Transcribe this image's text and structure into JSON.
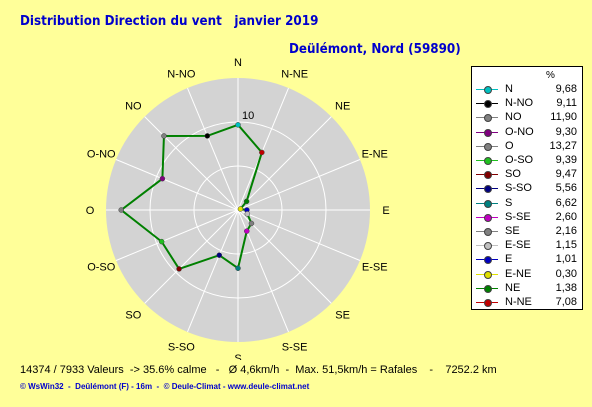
{
  "title": "Distribution Direction du vent   janvier 2019",
  "subtitle": "Deülémont, Nord (59890)",
  "legend_header": "%",
  "chart_data": {
    "type": "radar",
    "directions": [
      "N",
      "N-NE",
      "NE",
      "E-NE",
      "E",
      "E-SE",
      "SE",
      "S-SE",
      "S",
      "S-SO",
      "SO",
      "O-SO",
      "O",
      "O-NO",
      "NO",
      "N-NO"
    ],
    "values": [
      9.68,
      7.08,
      1.38,
      0.3,
      1.01,
      1.15,
      2.16,
      2.6,
      6.62,
      5.56,
      9.47,
      9.39,
      13.27,
      9.3,
      11.9,
      9.11
    ],
    "rmax": 15,
    "ring_label": "10",
    "line_color": "#008000",
    "legend": [
      {
        "label": "N",
        "value": "9,68",
        "color": "#00C0C0"
      },
      {
        "label": "N-NO",
        "value": "9,11",
        "color": "#000000"
      },
      {
        "label": "NO",
        "value": "11,90",
        "color": "#808080"
      },
      {
        "label": "O-NO",
        "value": "9,30",
        "color": "#800080"
      },
      {
        "label": "O",
        "value": "13,27",
        "color": "#808080"
      },
      {
        "label": "O-SO",
        "value": "9,39",
        "color": "#20C020"
      },
      {
        "label": "SO",
        "value": "9,47",
        "color": "#800000"
      },
      {
        "label": "S-SO",
        "value": "5,56",
        "color": "#000080"
      },
      {
        "label": "S",
        "value": "6,62",
        "color": "#008080"
      },
      {
        "label": "S-SE",
        "value": "2,60",
        "color": "#C000C0"
      },
      {
        "label": "SE",
        "value": "2,16",
        "color": "#808080"
      },
      {
        "label": "E-SE",
        "value": "1,15",
        "color": "#C0C0C0"
      },
      {
        "label": "E",
        "value": "1,01",
        "color": "#0000C0"
      },
      {
        "label": "E-NE",
        "value": "0,30",
        "color": "#E0E000"
      },
      {
        "label": "NE",
        "value": "1,38",
        "color": "#008000"
      },
      {
        "label": "N-NE",
        "value": "7,08",
        "color": "#C00000"
      }
    ]
  },
  "footer": {
    "stats": "14374 / 7933 Valeurs  -> 35.6% calme   -   Ø 4,6km/h  -  Max. 51,5km/h = Rafales    -    7252.2 km",
    "credit": "© WsWin32  -  Deûlémont (F) - 16m  -  © Deule-Climat - www.deule-climat.net"
  }
}
